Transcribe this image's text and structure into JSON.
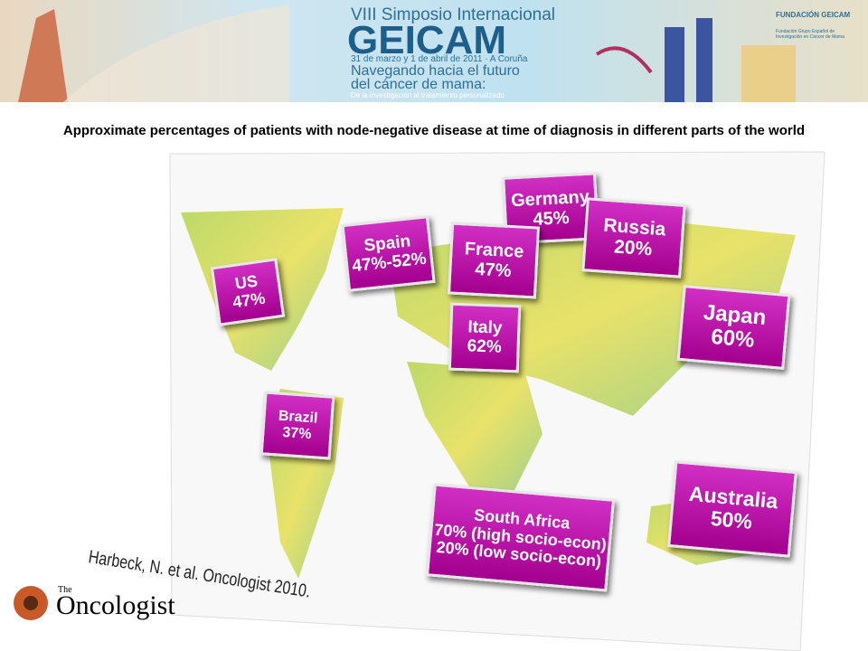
{
  "header": {
    "edition": "VIII Simposio Internacional",
    "name": "GEICAM",
    "dates": "31 de marzo y 1 de abril de 2011 · A Coruña",
    "motto": [
      "Navegando hacia el futuro",
      "del cáncer de mama:"
    ],
    "tagline": "De la investigación al tratamiento personalizado",
    "org": "FUNDACIÓN GEICAM",
    "org_full": "Fundación Grupo Español de Investigación en Cáncer de Mama"
  },
  "title": "Approximate percentages of patients with node-negative disease at time of diagnosis in different parts of the world",
  "labels": [
    {
      "lines": [
        "US",
        "47%"
      ]
    },
    {
      "lines": [
        "Spain",
        "47%-52%"
      ]
    },
    {
      "lines": [
        "Germany",
        "45%"
      ]
    },
    {
      "lines": [
        "France",
        "47%"
      ]
    },
    {
      "lines": [
        "Russia",
        "20%"
      ]
    },
    {
      "lines": [
        "Italy",
        "62%"
      ]
    },
    {
      "lines": [
        "Japan",
        "60%"
      ]
    },
    {
      "lines": [
        "Brazil",
        "37%"
      ]
    },
    {
      "lines": [
        "South Africa",
        "70% (high socio-econ)",
        "20% (low socio-econ)"
      ]
    },
    {
      "lines": [
        "Australia",
        "50%"
      ]
    }
  ],
  "citation": "Harbeck, N. et al. Oncologist 2010.",
  "logo": {
    "small": "The",
    "big": "Oncologist"
  }
}
